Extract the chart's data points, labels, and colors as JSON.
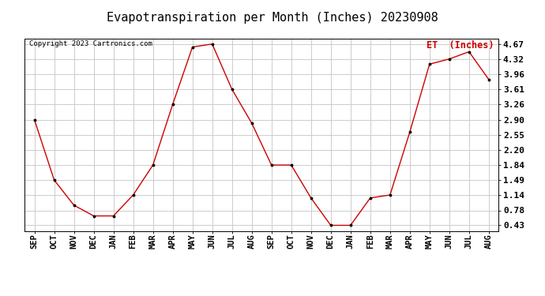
{
  "title": "Evapotranspiration per Month (Inches) 20230908",
  "legend_label": "ET  (Inches)",
  "copyright_text": "Copyright 2023 Cartronics.com",
  "months": [
    "SEP",
    "OCT",
    "NOV",
    "DEC",
    "JAN",
    "FEB",
    "MAR",
    "APR",
    "MAY",
    "JUN",
    "JUL",
    "AUG",
    "SEP",
    "OCT",
    "NOV",
    "DEC",
    "JAN",
    "FEB",
    "MAR",
    "APR",
    "MAY",
    "JUN",
    "JUL",
    "AUG"
  ],
  "values": [
    2.9,
    1.49,
    0.9,
    0.65,
    0.65,
    1.14,
    1.84,
    3.26,
    4.6,
    4.67,
    3.61,
    2.82,
    1.84,
    1.84,
    1.07,
    0.43,
    0.43,
    1.07,
    1.14,
    2.61,
    4.2,
    4.32,
    4.49,
    3.84
  ],
  "yticks": [
    0.43,
    0.78,
    1.14,
    1.49,
    1.84,
    2.2,
    2.55,
    2.9,
    3.26,
    3.61,
    3.96,
    4.32,
    4.67
  ],
  "ylim": [
    0.3,
    4.8
  ],
  "line_color": "#cc0000",
  "marker": ".",
  "marker_color": "#000000",
  "grid_color": "#cccccc",
  "background_color": "#ffffff",
  "title_fontsize": 11,
  "legend_color": "#cc0000",
  "copyright_color": "#000000",
  "tick_label_fontsize": 7.5,
  "ytick_label_fontsize": 8
}
